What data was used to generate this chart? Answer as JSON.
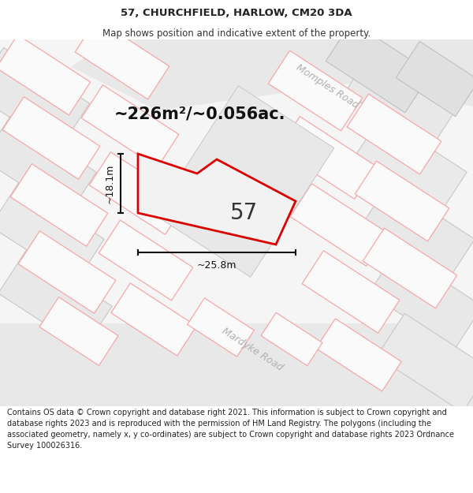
{
  "title": "57, CHURCHFIELD, HARLOW, CM20 3DA",
  "subtitle": "Map shows position and indicative extent of the property.",
  "area_text": "~226m²/~0.056ac.",
  "width_text": "~25.8m",
  "height_text": "~18.1m",
  "number_text": "57",
  "road1_text": "Momples Road",
  "road2_text": "Mardyke Road",
  "footer_text": "Contains OS data © Crown copyright and database right 2021. This information is subject to Crown copyright and database rights 2023 and is reproduced with the permission of HM Land Registry. The polygons (including the associated geometry, namely x, y co-ordinates) are subject to Crown copyright and database rights 2023 Ordnance Survey 100026316.",
  "map_bg": "#f7f7f7",
  "block_fill": "#ebebeb",
  "block_edge": "#cccccc",
  "parcel_fill": "#ffffff",
  "parcel_edge": "#f0a0a0",
  "road_fill": "#e8e8e8",
  "road_edge": "#c8c8c8",
  "plot_color": "#dd0000",
  "plot_fill": "#f0f0f0",
  "dim_color": "#111111",
  "road_label_color": "#b0b0b0",
  "title_fontsize": 9.5,
  "subtitle_fontsize": 8.5,
  "area_fontsize": 15,
  "number_fontsize": 20,
  "dim_label_fontsize": 9,
  "road_label_fontsize": 9,
  "footer_fontsize": 7
}
